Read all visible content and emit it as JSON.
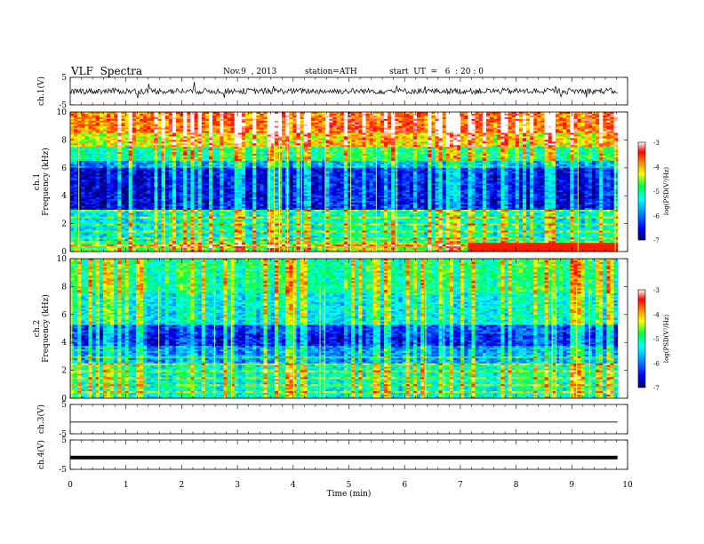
{
  "header": {
    "title": "VLF  Spectra",
    "date": "Nov.9  , 2013",
    "station": "station=ATH",
    "start": "start  UT  =   6  : 20 : 0"
  },
  "chart_data": [
    {
      "type": "line",
      "panel": "ch1-waveform",
      "ylabel": "ch.1(V)",
      "ylim": [
        -5,
        5
      ],
      "yticks": [
        "5",
        "-5"
      ],
      "baseline": 0,
      "description_of_series": "noisy waveform"
    },
    {
      "type": "heatmap",
      "panel": "ch1-spectrogram",
      "ylabel": "ch.1\nFrequency (kHz)",
      "ylim": [
        0,
        10
      ],
      "yticks": [
        "0",
        "2",
        "4",
        "6",
        "8",
        "10"
      ],
      "colorbar": {
        "label": "log(PSD(V²/Hz)",
        "range": [
          -7,
          -3
        ],
        "ticks": [
          "-3",
          "-4",
          "-5",
          "-6",
          "-7"
        ],
        "colors": [
          "#000080",
          "#0000ff",
          "#00ffff",
          "#00ff00",
          "#ffff00",
          "#ff8000",
          "#ff0000",
          "#ffffff"
        ]
      }
    },
    {
      "type": "heatmap",
      "panel": "ch2-spectrogram",
      "ylabel": "ch.2\nFrequency (kHz)",
      "ylim": [
        0,
        10
      ],
      "yticks": [
        "0",
        "2",
        "4",
        "6",
        "8",
        "10"
      ],
      "colorbar": {
        "label": "log(PSD(V²/Hz)",
        "range": [
          -7,
          -3
        ],
        "ticks": [
          "-3",
          "-4",
          "-5",
          "-6",
          "-7"
        ]
      }
    },
    {
      "type": "line",
      "panel": "ch3-waveform",
      "ylabel": "ch.3(V)",
      "ylim": [
        -5,
        5
      ],
      "yticks": [
        "5",
        "-5"
      ],
      "baseline": -1
    },
    {
      "type": "line",
      "panel": "ch4-waveform",
      "ylabel": "ch.4(V)",
      "ylim": [
        -5,
        5
      ],
      "yticks": [
        "5",
        "-5"
      ],
      "baseline": -1
    }
  ],
  "xaxis": {
    "label": "Time  (min)",
    "xlim": [
      0,
      10
    ],
    "data_end": 9.82,
    "ticks": [
      "0",
      "1",
      "2",
      "3",
      "4",
      "5",
      "6",
      "7",
      "8",
      "9",
      "10"
    ]
  }
}
